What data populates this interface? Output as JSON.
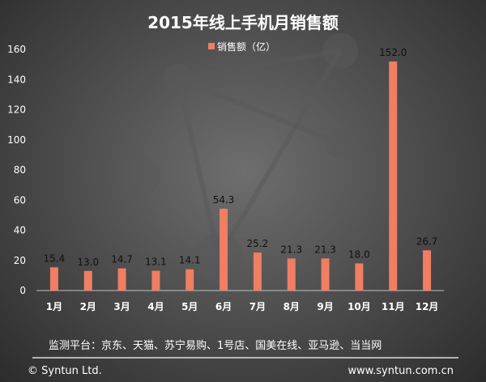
{
  "chart_data": {
    "type": "bar",
    "title": "2015年线上手机月销售额",
    "legend": {
      "position": "top-center"
    },
    "categories": [
      "1月",
      "2月",
      "3月",
      "4月",
      "5月",
      "6月",
      "7月",
      "8月",
      "9月",
      "10月",
      "11月",
      "12月"
    ],
    "series": [
      {
        "name": "销售额（亿）",
        "values": [
          15.4,
          13.0,
          14.7,
          13.1,
          14.1,
          54.3,
          25.2,
          21.3,
          21.3,
          18.0,
          152.0,
          26.7
        ],
        "labels": [
          "15.4",
          "13.0",
          "14.7",
          "13.1",
          "14.1",
          "54.3",
          "25.2",
          "21.3",
          "21.3",
          "18.0",
          "152.0",
          "26.7"
        ],
        "color": "#f07e63"
      }
    ],
    "ylim": [
      0,
      160
    ],
    "yticks": [
      "0",
      "20",
      "40",
      "60",
      "80",
      "100",
      "120",
      "140",
      "160"
    ],
    "grid": false
  },
  "source_note": "监测平台：京东、天猫、苏宁易购、1号店、国美在线、亚马逊、当当网",
  "footer": {
    "copyright": "© Syntun Ltd.",
    "website": "www.syntun.com.cn"
  }
}
